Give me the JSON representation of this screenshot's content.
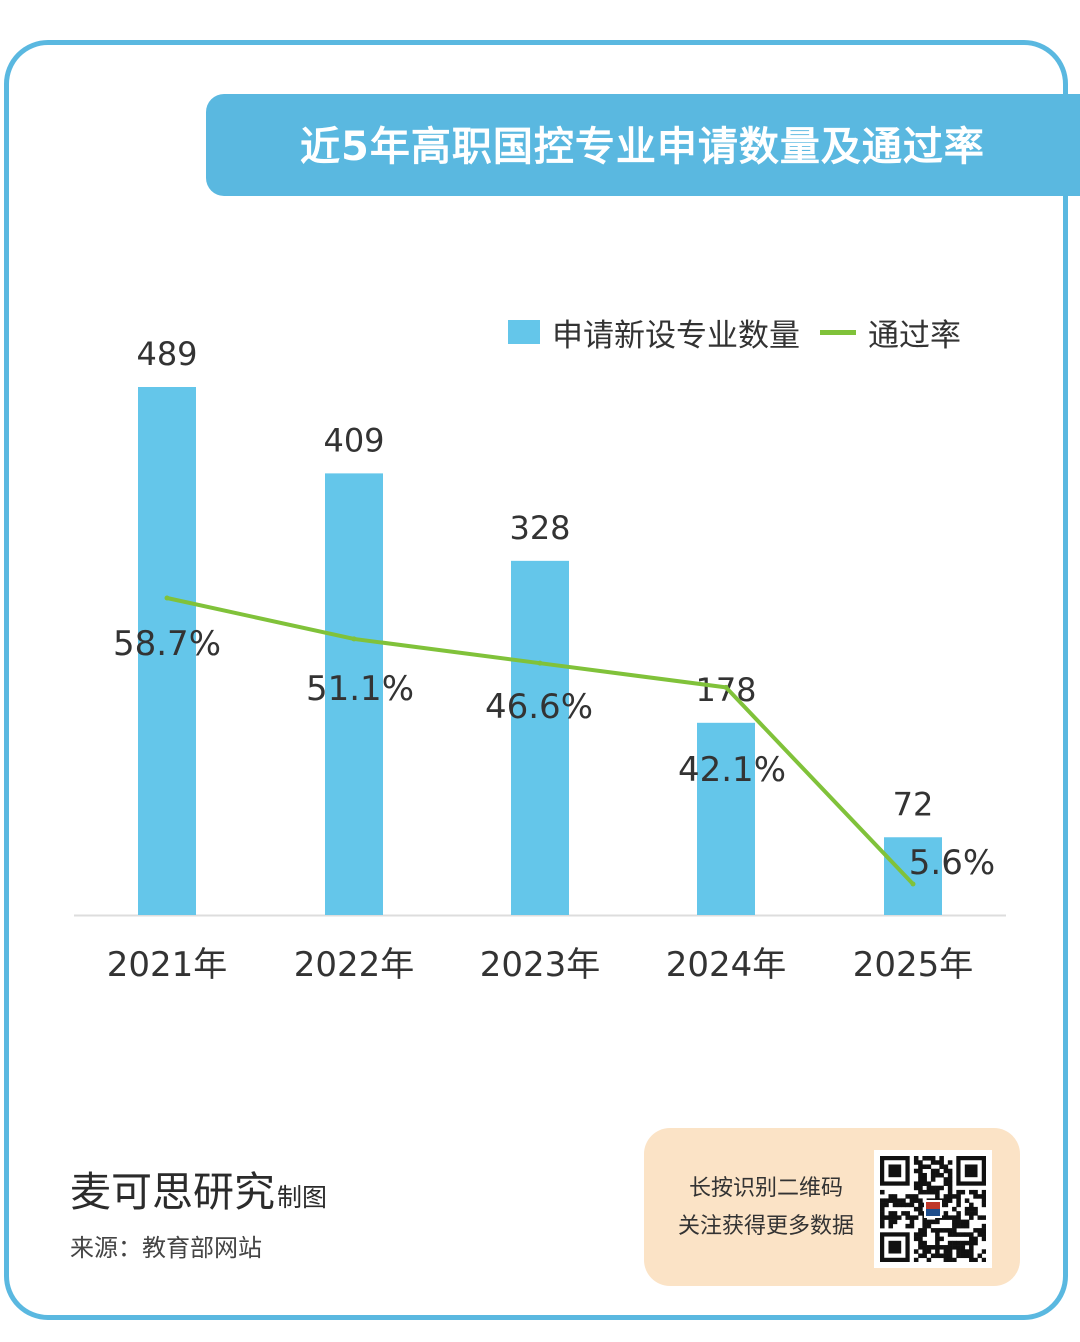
{
  "title": "近5年高职国控专业申请数量及通过率",
  "legend": {
    "bars": "申请新设专业数量",
    "line": "通过率"
  },
  "colors": {
    "accent": "#5ab8e0",
    "bar": "#64c6ea",
    "line": "#80c23a",
    "qr_card": "#fbe3c6"
  },
  "chart_data": {
    "type": "bar",
    "title": "近5年高职国控专业申请数量及通过率",
    "categories": [
      "2021年",
      "2022年",
      "2023年",
      "2024年",
      "2025年"
    ],
    "series": [
      {
        "name": "申请新设专业数量",
        "type": "bar",
        "values": [
          489,
          409,
          328,
          178,
          72
        ],
        "labels": [
          "489",
          "409",
          "328",
          "178",
          "72"
        ]
      },
      {
        "name": "通过率",
        "type": "line",
        "values": [
          58.7,
          51.1,
          46.6,
          42.1,
          5.6
        ],
        "labels": [
          "58.7%",
          "51.1%",
          "46.6%",
          "42.1%",
          "5.6%"
        ]
      }
    ],
    "ylim": [
      0,
      489
    ],
    "xlabel": "",
    "ylabel": "",
    "grid": false,
    "legend_position": "top-right"
  },
  "footer": {
    "brand": "麦可思研究",
    "brand_suffix": "制图",
    "source": "来源：教育部网站"
  },
  "qr": {
    "line1": "长按识别二维码",
    "line2": "关注获得更多数据",
    "icon": "qr-code-icon"
  }
}
